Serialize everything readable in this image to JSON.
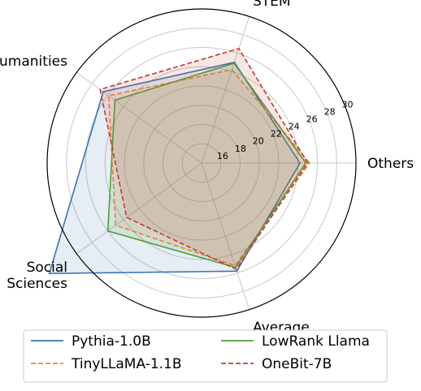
{
  "chart_data": {
    "type": "radar",
    "axes": [
      "Others",
      "STEM",
      "Humanities",
      "Social\nSciences",
      "Average"
    ],
    "radial_ticks": [
      "16",
      "18",
      "20",
      "22",
      "24",
      "26",
      "28",
      "30"
    ],
    "radial_range": [
      14,
      30
    ],
    "grid": true,
    "legend_position": "bottom",
    "series": [
      {
        "name": "Pythia-1.0B",
        "color": "#3a76af",
        "dash": "solid",
        "fill_opacity": 0.13,
        "values": [
          24.2,
          25.0,
          26.6,
          33.5,
          25.8
        ]
      },
      {
        "name": "TinyLLaMA-1.1B",
        "color": "#ef8636",
        "dash": "dashed",
        "fill_opacity": 0.13,
        "values": [
          25.2,
          24.2,
          25.9,
          25.0,
          25.2
        ]
      },
      {
        "name": "LowRank Llama",
        "color": "#519e3e",
        "dash": "solid",
        "fill_opacity": 0.13,
        "values": [
          24.8,
          24.9,
          25.1,
          26.0,
          25.4
        ]
      },
      {
        "name": "OneBit-7B",
        "color": "#c53a32",
        "dash": "dashed",
        "fill_opacity": 0.13,
        "values": [
          25.0,
          26.5,
          27.0,
          23.6,
          25.6
        ]
      }
    ]
  }
}
